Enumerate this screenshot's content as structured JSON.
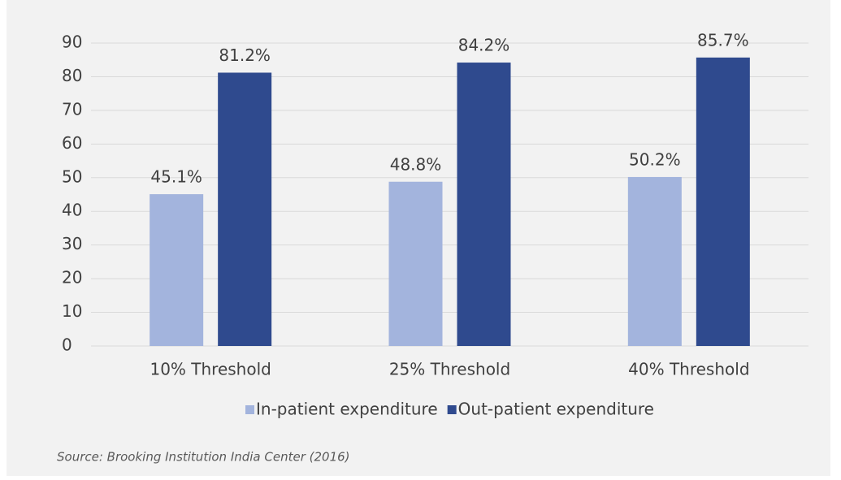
{
  "chart_data": {
    "type": "bar",
    "categories": [
      "10% Threshold",
      "25% Threshold",
      "40% Threshold"
    ],
    "series": [
      {
        "name": "In-patient expenditure",
        "color": "#a3b4dd",
        "values": [
          45.1,
          48.8,
          50.2
        ],
        "value_labels": [
          "45.1%",
          "48.8%",
          "50.2%"
        ]
      },
      {
        "name": "Out-patient expenditure",
        "color": "#2f4a8e",
        "values": [
          81.2,
          84.2,
          85.7
        ],
        "value_labels": [
          "81.2%",
          "84.2%",
          "85.7%"
        ]
      }
    ],
    "ylim": [
      0,
      90
    ],
    "yticks": [
      0,
      10,
      20,
      30,
      40,
      50,
      60,
      70,
      80,
      90
    ],
    "grid": true,
    "legend": "bottom",
    "source": "Source: Brooking Institution India Center (2016)"
  }
}
